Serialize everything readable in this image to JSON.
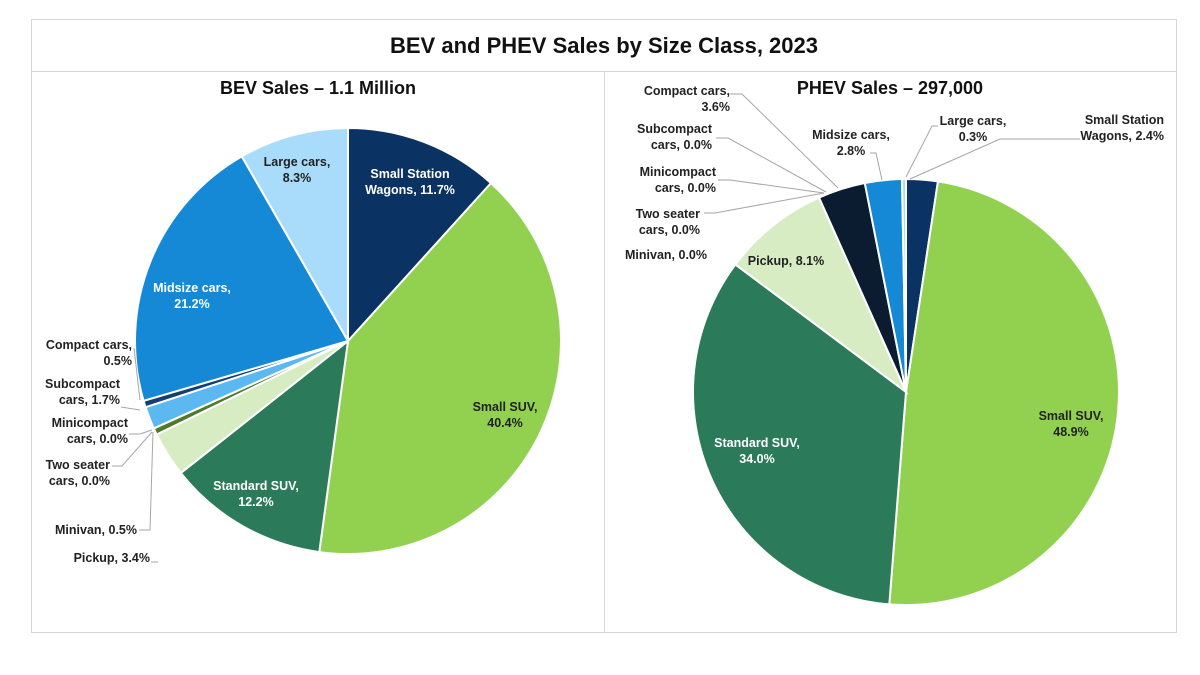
{
  "title": "BEV and PHEV Sales by Size Class, 2023",
  "colors": {
    "small_station_wagons": "#0a3262",
    "small_suv": "#92d050",
    "standard_suv": "#2b7a59",
    "pickup": "#d8ecc3",
    "minivan": "#4f7a2e",
    "two_seater": "#9bbf63",
    "minicompact": "#7aa9d6",
    "subcompact": "#5cb8f0",
    "compact_bev": "#163e73",
    "compact_phev": "#0b1c30",
    "midsize": "#1589d6",
    "large": "#a9dcfb"
  },
  "chart_data": [
    {
      "type": "pie",
      "title": "BEV Sales – 1.1 Million",
      "slices": [
        {
          "label": [
            "Small Station",
            "Wagons, 11.7%"
          ],
          "value": 11.7,
          "color": "#0a3262"
        },
        {
          "label": [
            "Small SUV,",
            "40.4%"
          ],
          "value": 40.4,
          "color": "#92d050"
        },
        {
          "label": [
            "Standard SUV,",
            "12.2%"
          ],
          "value": 12.2,
          "color": "#2b7a59"
        },
        {
          "label": [
            "Pickup, 3.4%"
          ],
          "value": 3.4,
          "color": "#d8ecc3"
        },
        {
          "label": [
            "Minivan, 0.5%"
          ],
          "value": 0.5,
          "color": "#4f7a2e"
        },
        {
          "label": [
            "Two seater",
            "cars, 0.0%"
          ],
          "value": 0.0,
          "color": "#9bbf63"
        },
        {
          "label": [
            "Minicompact",
            "cars, 0.0%"
          ],
          "value": 0.0,
          "color": "#7aa9d6"
        },
        {
          "label": [
            "Subcompact",
            "cars, 1.7%"
          ],
          "value": 1.7,
          "color": "#5cb8f0"
        },
        {
          "label": [
            "Compact cars,",
            "0.5%"
          ],
          "value": 0.5,
          "color": "#163e73"
        },
        {
          "label": [
            "Midsize cars,",
            "21.2%"
          ],
          "value": 21.2,
          "color": "#1589d6"
        },
        {
          "label": [
            "Large cars,",
            "8.3%"
          ],
          "value": 8.3,
          "color": "#a9dcfb"
        }
      ]
    },
    {
      "type": "pie",
      "title": "PHEV Sales – 297,000",
      "slices": [
        {
          "label": [
            "Small Station",
            "Wagons, 2.4%"
          ],
          "value": 2.4,
          "color": "#0a3262"
        },
        {
          "label": [
            "Small SUV,",
            "48.9%"
          ],
          "value": 48.9,
          "color": "#92d050"
        },
        {
          "label": [
            "Standard SUV,",
            "34.0%"
          ],
          "value": 34.0,
          "color": "#2b7a59"
        },
        {
          "label": [
            "Pickup, 8.1%"
          ],
          "value": 8.1,
          "color": "#d8ecc3"
        },
        {
          "label": [
            "Minivan, 0.0%"
          ],
          "value": 0.0,
          "color": "#4f7a2e"
        },
        {
          "label": [
            "Two seater",
            "cars, 0.0%"
          ],
          "value": 0.0,
          "color": "#9bbf63"
        },
        {
          "label": [
            "Minicompact",
            "cars, 0.0%"
          ],
          "value": 0.0,
          "color": "#7aa9d6"
        },
        {
          "label": [
            "Subcompact",
            "cars, 0.0%"
          ],
          "value": 0.0,
          "color": "#5cb8f0"
        },
        {
          "label": [
            "Compact cars,",
            "3.6%"
          ],
          "value": 3.6,
          "color": "#0b1c30"
        },
        {
          "label": [
            "Midsize cars,",
            "2.8%"
          ],
          "value": 2.8,
          "color": "#1589d6"
        },
        {
          "label": [
            "Large cars,",
            "0.3%"
          ],
          "value": 0.3,
          "color": "#a9dcfb"
        }
      ]
    }
  ]
}
